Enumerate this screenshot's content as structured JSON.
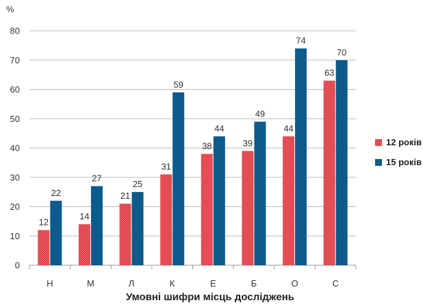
{
  "chart_data": {
    "type": "bar",
    "title": "",
    "ylabel": "%",
    "xlabel": "Умовні шифри місць досліджень",
    "categories": [
      "Н",
      "М",
      "Л",
      "К",
      "Е",
      "Б",
      "О",
      "С"
    ],
    "ylim": [
      0,
      80
    ],
    "yticks": [
      0,
      10,
      20,
      30,
      40,
      50,
      60,
      70,
      80
    ],
    "grid": true,
    "legend_position": "right",
    "series": [
      {
        "name": "12 років",
        "values": [
          12,
          14,
          21,
          31,
          38,
          39,
          44,
          63
        ],
        "color": "#e8373d",
        "pattern": "checker"
      },
      {
        "name": "15 років",
        "values": [
          22,
          27,
          25,
          59,
          44,
          49,
          74,
          70
        ],
        "color": "#0d5a8c"
      }
    ]
  }
}
